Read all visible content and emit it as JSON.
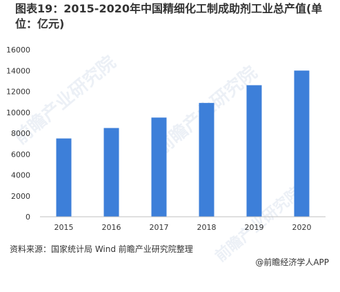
{
  "title": "图表19：2015-2020年中国精细化工制成助剂工业总产值(单位：亿元)",
  "source": "资料来源：国家统计局 Wind 前瞻产业研究院整理",
  "credit": "@前瞻经济学人APP",
  "watermark": "前瞻产业研究院",
  "colors": {
    "bar": "#3d7fd9",
    "axis": "#bfbfbf",
    "text": "#333333"
  },
  "chart_data": {
    "type": "bar",
    "categories": [
      "2015",
      "2016",
      "2017",
      "2018",
      "2019",
      "2020"
    ],
    "values": [
      7500,
      8500,
      9500,
      10900,
      12600,
      14000
    ],
    "ylim": [
      0,
      16000
    ],
    "yticks": [
      0,
      2000,
      4000,
      6000,
      8000,
      10000,
      12000,
      14000,
      16000
    ],
    "grid": false,
    "legend": "none"
  }
}
